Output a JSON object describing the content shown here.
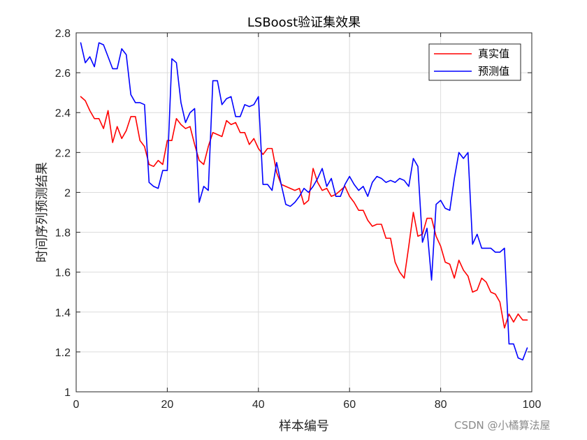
{
  "chart_data": {
    "type": "line",
    "title": "LSBoost验证集效果",
    "xlabel": "样本编号",
    "ylabel": "时间序列预测结果",
    "xlim": [
      0,
      100
    ],
    "ylim": [
      1,
      2.8
    ],
    "xticks": [
      0,
      20,
      40,
      60,
      80,
      100
    ],
    "yticks": [
      1,
      1.2,
      1.4,
      1.6,
      1.8,
      2,
      2.2,
      2.4,
      2.6,
      2.8
    ],
    "grid": true,
    "legend_position": "top-right",
    "x": [
      1,
      2,
      3,
      4,
      5,
      6,
      7,
      8,
      9,
      10,
      11,
      12,
      13,
      14,
      15,
      16,
      17,
      18,
      19,
      20,
      21,
      22,
      23,
      24,
      25,
      26,
      27,
      28,
      29,
      30,
      31,
      32,
      33,
      34,
      35,
      36,
      37,
      38,
      39,
      40,
      41,
      42,
      43,
      44,
      45,
      46,
      47,
      48,
      49,
      50,
      51,
      52,
      53,
      54,
      55,
      56,
      57,
      58,
      59,
      60,
      61,
      62,
      63,
      64,
      65,
      66,
      67,
      68,
      69,
      70,
      71,
      72,
      73,
      74,
      75,
      76,
      77,
      78,
      79,
      80,
      81,
      82,
      83,
      84,
      85,
      86,
      87,
      88,
      89,
      90,
      91,
      92,
      93,
      94,
      95,
      96,
      97,
      98,
      99
    ],
    "series": [
      {
        "name": "真实值",
        "color": "#ff0000",
        "values": [
          2.48,
          2.46,
          2.41,
          2.37,
          2.37,
          2.32,
          2.41,
          2.25,
          2.33,
          2.27,
          2.31,
          2.38,
          2.38,
          2.26,
          2.23,
          2.14,
          2.13,
          2.16,
          2.14,
          2.26,
          2.26,
          2.37,
          2.34,
          2.32,
          2.33,
          2.24,
          2.16,
          2.14,
          2.23,
          2.3,
          2.29,
          2.28,
          2.36,
          2.34,
          2.35,
          2.3,
          2.3,
          2.24,
          2.27,
          2.22,
          2.19,
          2.22,
          2.22,
          2.1,
          2.04,
          2.03,
          2.02,
          2.01,
          2.02,
          1.94,
          1.96,
          2.12,
          2.05,
          2.01,
          2.02,
          1.98,
          1.99,
          2.01,
          2.03,
          1.98,
          1.95,
          1.91,
          1.91,
          1.86,
          1.83,
          1.84,
          1.84,
          1.77,
          1.77,
          1.65,
          1.6,
          1.57,
          1.73,
          1.9,
          1.78,
          1.79,
          1.87,
          1.87,
          1.78,
          1.73,
          1.65,
          1.64,
          1.57,
          1.66,
          1.61,
          1.58,
          1.5,
          1.51,
          1.57,
          1.55,
          1.5,
          1.49,
          1.45,
          1.32,
          1.39,
          1.35,
          1.39,
          1.36,
          1.36
        ]
      },
      {
        "name": "预测值",
        "color": "#0000ff",
        "values": [
          2.75,
          2.65,
          2.68,
          2.63,
          2.75,
          2.74,
          2.68,
          2.62,
          2.62,
          2.72,
          2.69,
          2.49,
          2.45,
          2.45,
          2.44,
          2.05,
          2.03,
          2.02,
          2.11,
          2.11,
          2.67,
          2.65,
          2.45,
          2.35,
          2.4,
          2.42,
          1.95,
          2.03,
          2.01,
          2.56,
          2.56,
          2.44,
          2.47,
          2.48,
          2.38,
          2.38,
          2.44,
          2.43,
          2.44,
          2.48,
          2.04,
          2.04,
          2.01,
          2.15,
          2.04,
          1.94,
          1.93,
          1.95,
          1.98,
          2.02,
          2.0,
          2.03,
          2.07,
          2.12,
          2.03,
          2.07,
          1.98,
          1.98,
          2.04,
          2.08,
          2.04,
          2.01,
          2.03,
          1.98,
          2.05,
          2.08,
          2.07,
          2.05,
          2.06,
          2.05,
          2.07,
          2.06,
          2.03,
          2.17,
          2.13,
          1.75,
          1.82,
          1.56,
          1.94,
          1.96,
          1.92,
          1.91,
          2.07,
          2.2,
          2.17,
          2.2,
          1.74,
          1.79,
          1.72,
          1.72,
          1.72,
          1.7,
          1.7,
          1.72,
          1.24,
          1.24,
          1.17,
          1.16,
          1.22
        ]
      }
    ]
  },
  "watermark": "CSDN @小橘算法屋"
}
